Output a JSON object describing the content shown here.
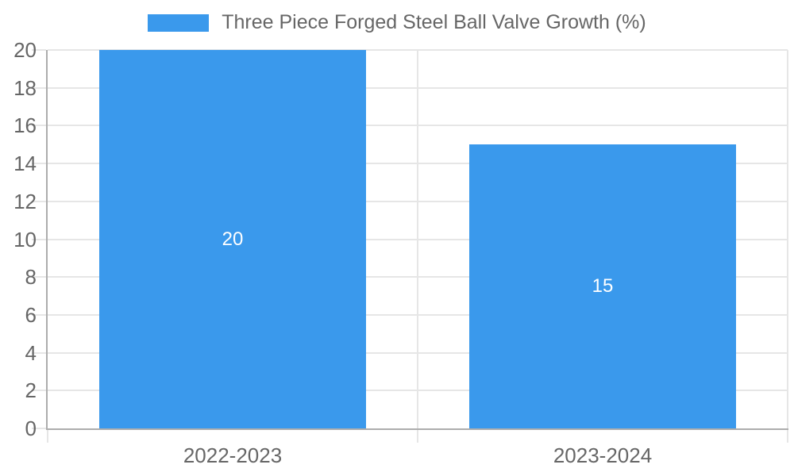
{
  "chart_data": {
    "type": "bar",
    "title": "",
    "legend": {
      "position": "top",
      "label": "Three Piece Forged Steel Ball Valve Growth (%)"
    },
    "categories": [
      "2022-2023",
      "2023-2024"
    ],
    "series": [
      {
        "name": "Three Piece Forged Steel Ball Valve Growth (%)",
        "values": [
          20,
          15
        ]
      }
    ],
    "data_labels": [
      "20",
      "15"
    ],
    "xlabel": "",
    "ylabel": "",
    "ylim": [
      0,
      20
    ],
    "yticks": [
      0,
      2,
      4,
      6,
      8,
      10,
      12,
      14,
      16,
      18,
      20
    ],
    "grid": true
  },
  "colors": {
    "bar_fill": "#3A99EC",
    "gridline": "#E6E6E6",
    "axis_line": "#ADADAD",
    "tick_text": "#666666",
    "legend_text": "#666666",
    "bar_label_text": "#FFFFFF",
    "background": "#FFFFFF"
  }
}
